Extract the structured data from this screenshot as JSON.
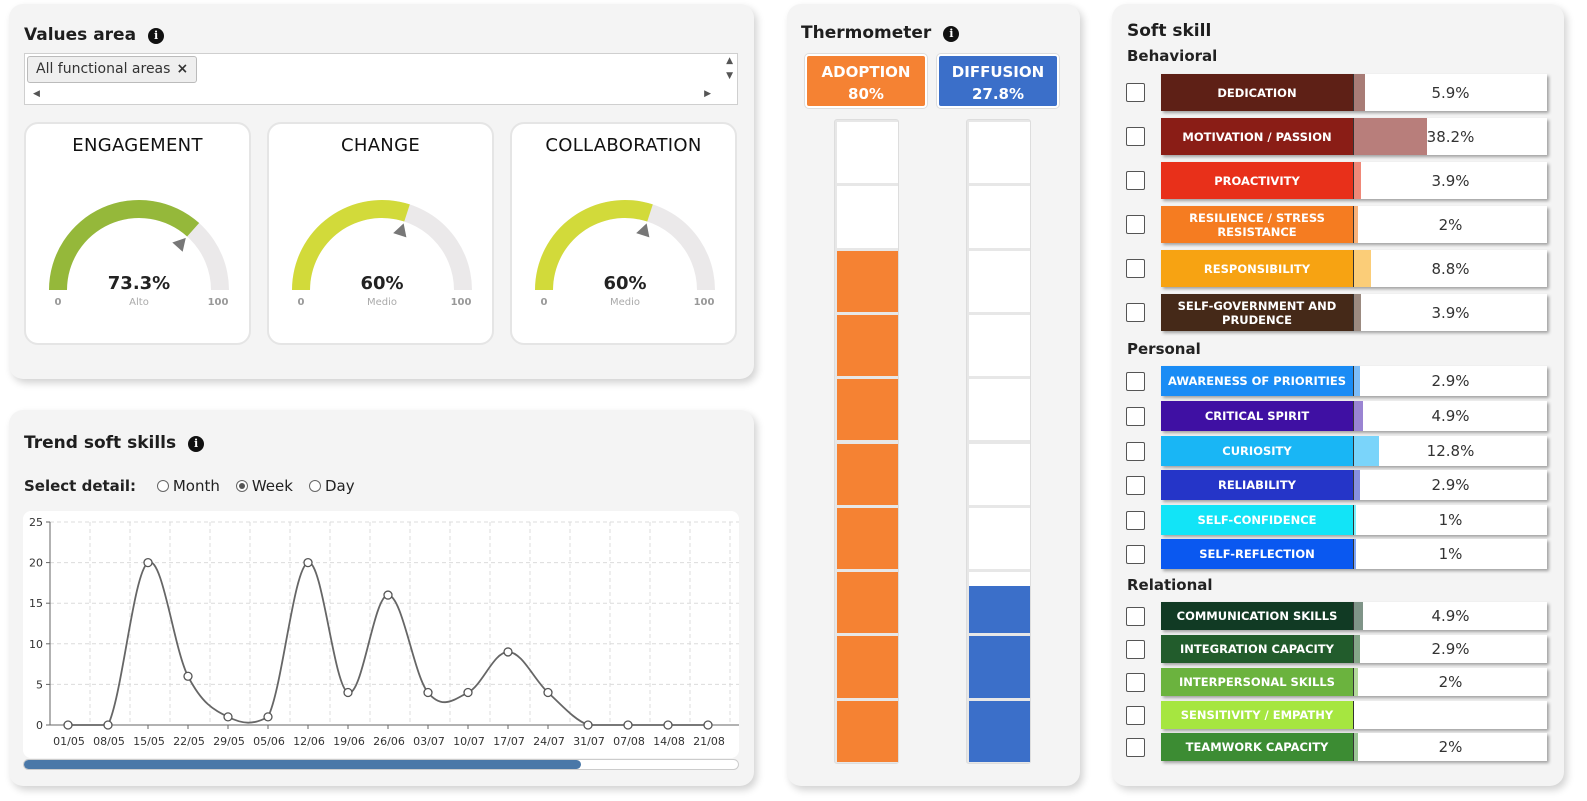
{
  "values_area": {
    "title": "Values area",
    "chip_label": "All functional areas",
    "chip_remove": "×",
    "gauges": [
      {
        "title": "ENGAGEMENT",
        "value_label": "73.3%",
        "value": 73.3,
        "level": "Alto",
        "min": "0",
        "max": "100",
        "color": "#95b83a"
      },
      {
        "title": "CHANGE",
        "value_label": "60%",
        "value": 60,
        "level": "Medio",
        "min": "0",
        "max": "100",
        "color": "#d2da3a"
      },
      {
        "title": "COLLABORATION",
        "value_label": "60%",
        "value": 60,
        "level": "Medio",
        "min": "0",
        "max": "100",
        "color": "#d2da3a"
      }
    ]
  },
  "trend": {
    "title": "Trend soft skills",
    "detail_label": "Select detail:",
    "options": [
      {
        "label": "Month",
        "selected": false
      },
      {
        "label": "Week",
        "selected": true
      },
      {
        "label": "Day",
        "selected": false
      }
    ],
    "scroll_fraction": 0.78
  },
  "chart_data": {
    "type": "line",
    "x": [
      "01/05",
      "08/05",
      "15/05",
      "22/05",
      "29/05",
      "05/06",
      "12/06",
      "19/06",
      "26/06",
      "03/07",
      "10/07",
      "17/07",
      "24/07",
      "31/07",
      "07/08",
      "14/08",
      "21/08"
    ],
    "values": [
      0,
      0,
      20,
      6,
      1,
      1,
      20,
      4,
      16,
      4,
      4,
      9,
      4,
      0,
      0,
      0,
      0
    ],
    "ylim": [
      0,
      25
    ],
    "yticks": [
      "0",
      "5",
      "10",
      "15",
      "20",
      "25"
    ],
    "grid": true,
    "line_color": "#666666"
  },
  "thermometer": {
    "title": "Thermometer",
    "adoption": {
      "label": "ADOPTION",
      "value_label": "80%",
      "value": 80,
      "color": "#f58233"
    },
    "diffusion": {
      "label": "DIFFUSION",
      "value_label": "27.8%",
      "value": 27.8,
      "color": "#3b6fc9"
    }
  },
  "soft_skill": {
    "title": "Soft skill",
    "groups": [
      {
        "name": "Behavioral",
        "items": [
          {
            "label": "DEDICATION",
            "value_label": "5.9%",
            "value": 5.9,
            "color": "#5e2016",
            "fill": "#a87c76"
          },
          {
            "label": "MOTIVATION / PASSION",
            "value_label": "38.2%",
            "value": 38.2,
            "color": "#8a1d16",
            "fill": "#b87e7b"
          },
          {
            "label": "PROACTIVITY",
            "value_label": "3.9%",
            "value": 3.9,
            "color": "#e8301a",
            "fill": "#f08878"
          },
          {
            "label": "RESILIENCE / STRESS RESISTANCE",
            "value_label": "2%",
            "value": 2,
            "color": "#f57c21",
            "fill": "#f9b27a"
          },
          {
            "label": "RESPONSIBILITY",
            "value_label": "8.8%",
            "value": 8.8,
            "color": "#f7a312",
            "fill": "#fbcd78"
          },
          {
            "label": "SELF-GOVERNMENT AND PRUDENCE",
            "value_label": "3.9%",
            "value": 3.9,
            "color": "#452918",
            "fill": "#9b8a80"
          }
        ]
      },
      {
        "name": "Personal",
        "items": [
          {
            "label": "AWARENESS OF PRIORITIES",
            "value_label": "2.9%",
            "value": 2.9,
            "color": "#1a8cf5",
            "fill": "#7dbdf8"
          },
          {
            "label": "CRITICAL SPIRIT",
            "value_label": "4.9%",
            "value": 4.9,
            "color": "#3f10a3",
            "fill": "#9a84d2"
          },
          {
            "label": "CURIOSITY",
            "value_label": "12.8%",
            "value": 12.8,
            "color": "#19b6f5",
            "fill": "#7ad4fa"
          },
          {
            "label": "RELIABILITY",
            "value_label": "2.9%",
            "value": 2.9,
            "color": "#2535c8",
            "fill": "#8790e0"
          },
          {
            "label": "SELF-CONFIDENCE",
            "value_label": "1%",
            "value": 1,
            "color": "#12e4f7",
            "fill": "#80f0fb"
          },
          {
            "label": "SELF-REFLECTION",
            "value_label": "1%",
            "value": 1,
            "color": "#0a58f0",
            "fill": "#7fa6f6"
          }
        ]
      },
      {
        "name": "Relational",
        "items": [
          {
            "label": "COMMUNICATION SKILLS",
            "value_label": "4.9%",
            "value": 4.9,
            "color": "#113a24",
            "fill": "#7f9488"
          },
          {
            "label": "INTEGRATION CAPACITY",
            "value_label": "2.9%",
            "value": 2.9,
            "color": "#225c2c",
            "fill": "#85a689"
          },
          {
            "label": "INTERPERSONAL SKILLS",
            "value_label": "2%",
            "value": 2,
            "color": "#6bb33e",
            "fill": "#b4d99c"
          },
          {
            "label": "SENSITIVITY / EMPATHY",
            "value_label": "",
            "value": 0,
            "color": "#a6e640",
            "fill": "#d3f39f"
          },
          {
            "label": "TEAMWORK CAPACITY",
            "value_label": "2%",
            "value": 2,
            "color": "#3c8c33",
            "fill": "#9cc697"
          }
        ]
      }
    ]
  }
}
